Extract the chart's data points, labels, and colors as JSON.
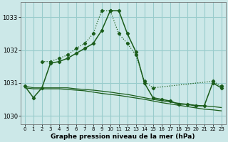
{
  "bg_color": "#cce8e8",
  "grid_color": "#99cccc",
  "line_color": "#1a5c1a",
  "title": "Graphe pression niveau de la mer (hPa)",
  "xlim": [
    -0.5,
    23.5
  ],
  "ylim": [
    1029.75,
    1033.45
  ],
  "yticks": [
    1030,
    1031,
    1032,
    1033
  ],
  "xticks": [
    0,
    1,
    2,
    3,
    4,
    5,
    6,
    7,
    8,
    9,
    10,
    11,
    12,
    13,
    14,
    15,
    16,
    17,
    18,
    19,
    20,
    21,
    22,
    23
  ],
  "line_main_x": [
    0,
    1,
    2,
    3,
    4,
    5,
    6,
    7,
    8,
    9,
    10,
    11,
    12,
    13,
    14,
    15,
    16,
    17,
    18,
    19,
    20,
    21,
    22,
    23
  ],
  "line_main_y": [
    1030.9,
    1030.55,
    1030.85,
    1031.6,
    1031.65,
    1031.75,
    1031.9,
    1032.05,
    1032.2,
    1032.6,
    1033.2,
    1033.2,
    1032.5,
    1031.95,
    1031.0,
    1030.55,
    1030.5,
    1030.45,
    1030.35,
    1030.35,
    1030.3,
    1030.3,
    1031.0,
    1030.85
  ],
  "line_dotted_x": [
    2,
    3,
    4,
    5,
    6,
    7,
    8,
    9,
    10,
    11,
    12,
    13,
    14,
    15,
    22,
    23
  ],
  "line_dotted_y": [
    1031.65,
    1031.65,
    1031.75,
    1031.85,
    1032.05,
    1032.2,
    1032.5,
    1033.2,
    1033.2,
    1032.5,
    1032.2,
    1031.85,
    1031.05,
    1030.85,
    1031.05,
    1030.9
  ],
  "line_flat1_x": [
    0,
    1,
    2,
    3,
    4,
    5,
    6,
    7,
    8,
    9,
    10,
    11,
    12,
    13,
    14,
    15,
    16,
    17,
    18,
    19,
    20,
    21,
    22,
    23
  ],
  "line_flat1_y": [
    1030.9,
    1030.85,
    1030.85,
    1030.85,
    1030.85,
    1030.85,
    1030.82,
    1030.8,
    1030.78,
    1030.75,
    1030.72,
    1030.68,
    1030.65,
    1030.6,
    1030.55,
    1030.5,
    1030.46,
    1030.42,
    1030.38,
    1030.35,
    1030.32,
    1030.3,
    1030.28,
    1030.25
  ],
  "line_flat2_x": [
    0,
    1,
    2,
    3,
    4,
    5,
    6,
    7,
    8,
    9,
    10,
    11,
    12,
    13,
    14,
    15,
    16,
    17,
    18,
    19,
    20,
    21,
    22,
    23
  ],
  "line_flat2_y": [
    1030.85,
    1030.82,
    1030.82,
    1030.82,
    1030.82,
    1030.8,
    1030.78,
    1030.76,
    1030.72,
    1030.68,
    1030.65,
    1030.62,
    1030.58,
    1030.54,
    1030.5,
    1030.45,
    1030.4,
    1030.36,
    1030.32,
    1030.28,
    1030.24,
    1030.2,
    1030.18,
    1030.15
  ]
}
